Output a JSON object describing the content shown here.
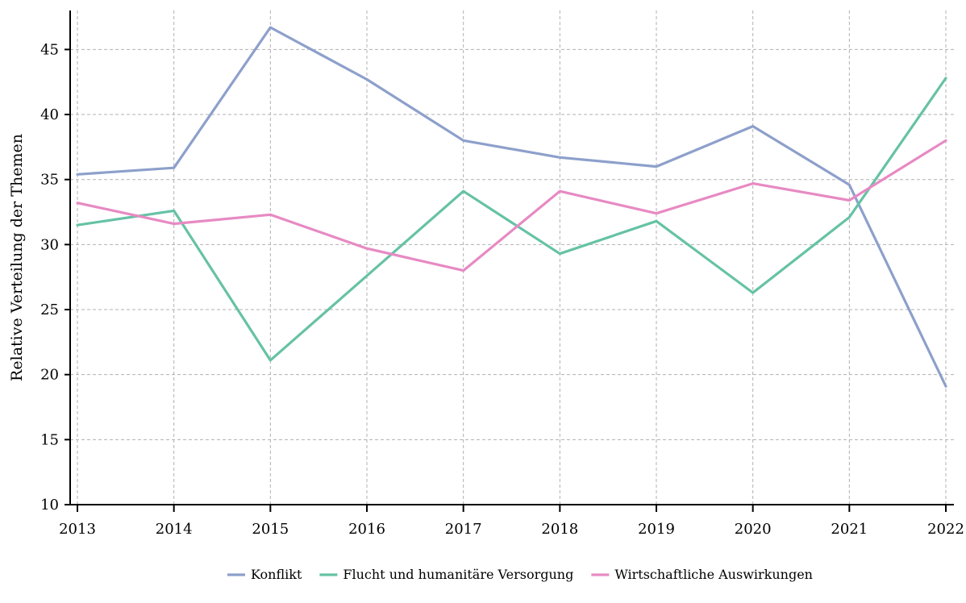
{
  "chart_data": {
    "type": "line",
    "title": "",
    "xlabel": "",
    "ylabel": "Relative Verteilung der Themen",
    "x": [
      "2013",
      "2014",
      "2015",
      "2016",
      "2017",
      "2018",
      "2019",
      "2020",
      "2021",
      "2022"
    ],
    "ylim": [
      10,
      48
    ],
    "yticks": [
      10,
      15,
      20,
      25,
      30,
      35,
      40,
      45
    ],
    "grid": true,
    "legend_position": "bottom-center",
    "series": [
      {
        "name": "Konflikt",
        "color": "#8da0cb",
        "values": [
          35.4,
          35.9,
          46.7,
          42.7,
          38.0,
          36.7,
          36.0,
          39.1,
          34.6,
          19.1
        ]
      },
      {
        "name": "Flucht und humanitäre Versorgung",
        "color": "#66c2a5",
        "values": [
          31.5,
          32.6,
          21.1,
          27.6,
          34.1,
          29.3,
          31.8,
          26.3,
          32.1,
          42.8
        ]
      },
      {
        "name": "Wirtschaftliche Auswirkungen",
        "color": "#e78ac3",
        "values": [
          33.2,
          31.6,
          32.3,
          29.7,
          28.0,
          34.1,
          32.4,
          34.7,
          33.4,
          38.0
        ]
      }
    ]
  }
}
